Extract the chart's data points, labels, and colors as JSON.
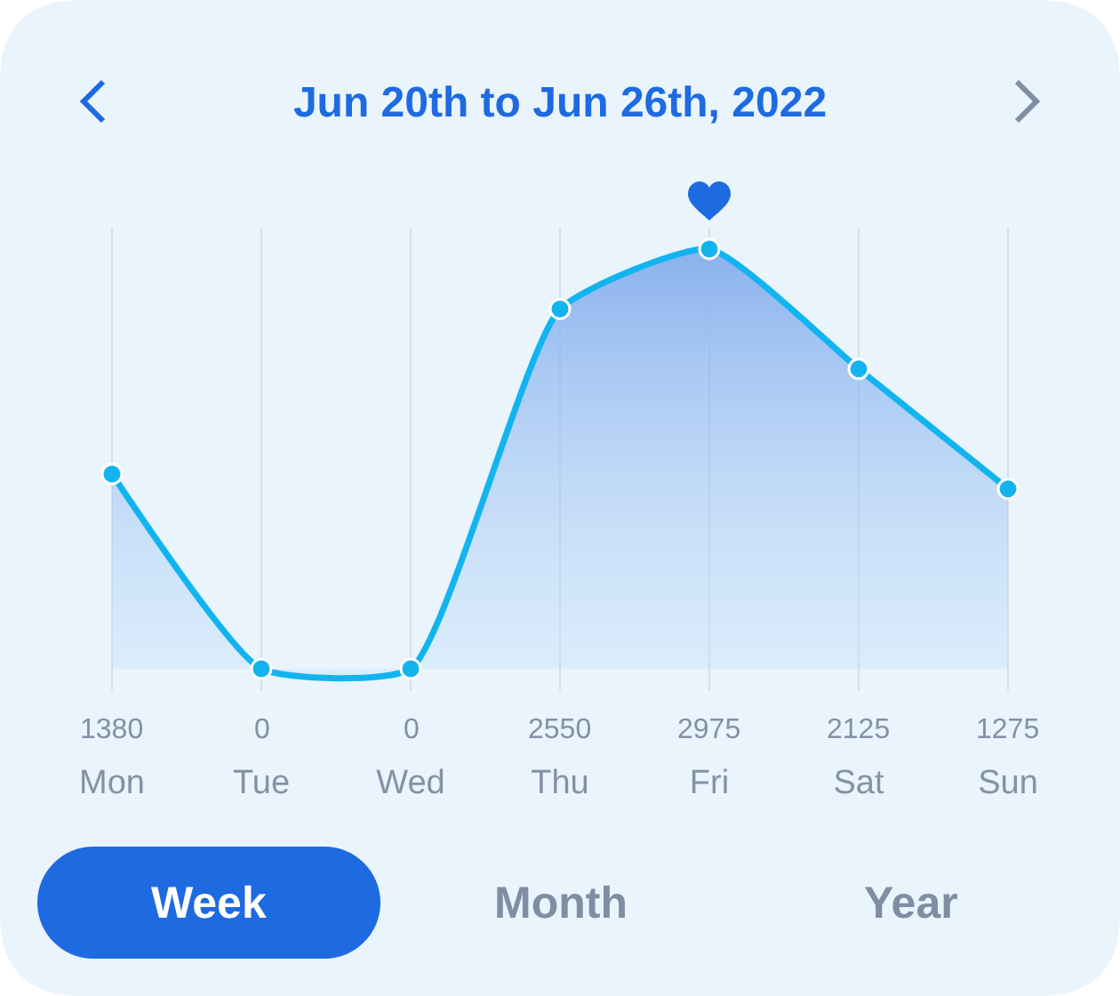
{
  "chart_data": {
    "type": "area",
    "title": "Jun 20th to Jun 26th, 2022",
    "categories": [
      "Mon",
      "Tue",
      "Wed",
      "Thu",
      "Fri",
      "Sat",
      "Sun"
    ],
    "series": [
      {
        "color": "#12b4f0",
        "values": [
          1380,
          0,
          0,
          2550,
          2975,
          2125,
          1275
        ]
      }
    ],
    "data_labels": true,
    "grid": "x",
    "marker": "circle",
    "annotations": [
      "Week",
      "Month",
      "Year"
    ]
  }
}
